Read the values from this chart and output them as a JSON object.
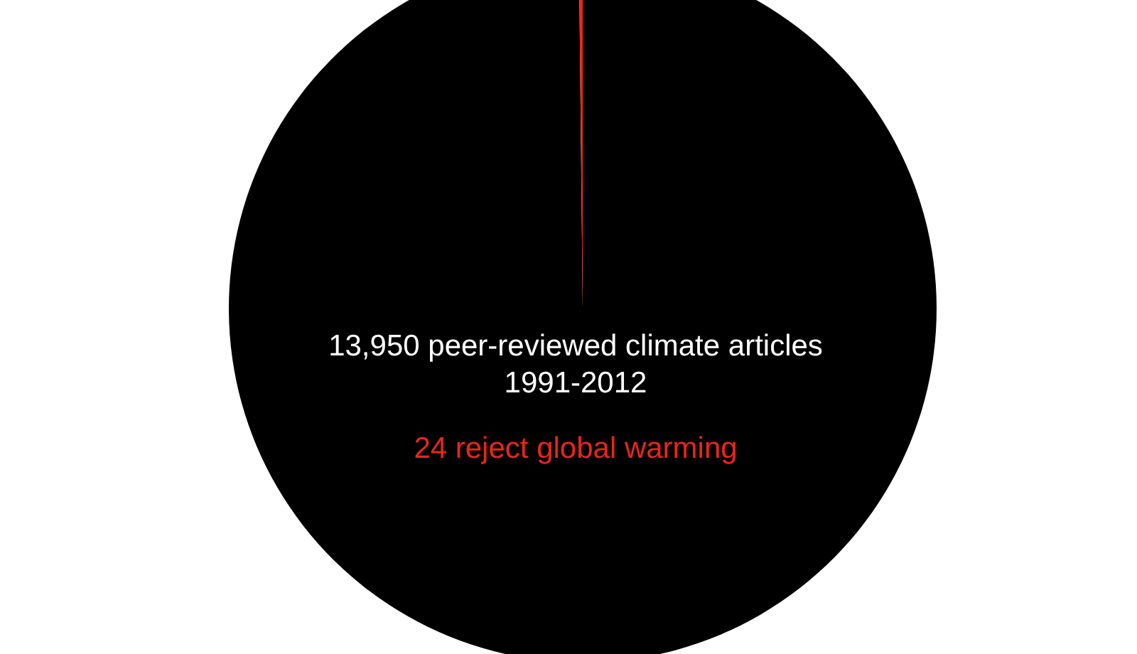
{
  "chart_data": {
    "type": "pie",
    "title": "13,950 peer-reviewed climate articles",
    "subtitle": "1991-2012",
    "categories": [
      null,
      null
    ],
    "values": [
      99.83,
      0.17
    ],
    "colors": [
      "#000000",
      "#e8261a"
    ],
    "annotations": [
      "24 reject global warming"
    ]
  }
}
